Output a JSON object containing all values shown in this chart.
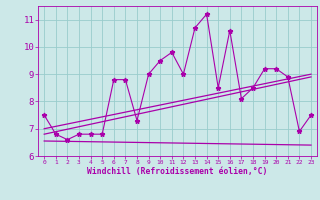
{
  "title": "",
  "xlabel": "Windchill (Refroidissement éolien,°C)",
  "ylabel": "",
  "xlim": [
    -0.5,
    23.5
  ],
  "ylim": [
    6.0,
    11.5
  ],
  "yticks": [
    6,
    7,
    8,
    9,
    10,
    11
  ],
  "xticks": [
    0,
    1,
    2,
    3,
    4,
    5,
    6,
    7,
    8,
    9,
    10,
    11,
    12,
    13,
    14,
    15,
    16,
    17,
    18,
    19,
    20,
    21,
    22,
    23
  ],
  "bg_color": "#cce8e8",
  "line_color": "#aa00aa",
  "grid_color": "#99cccc",
  "series": {
    "jagged": {
      "x": [
        0,
        1,
        2,
        3,
        4,
        5,
        6,
        7,
        8,
        9,
        10,
        11,
        12,
        13,
        14,
        15,
        16,
        17,
        18,
        19,
        20,
        21,
        22,
        23
      ],
      "y": [
        7.5,
        6.8,
        6.6,
        6.8,
        6.8,
        6.8,
        8.8,
        8.8,
        7.3,
        9.0,
        9.5,
        9.8,
        9.0,
        10.7,
        11.2,
        8.5,
        10.6,
        8.1,
        8.5,
        9.2,
        9.2,
        8.9,
        6.9,
        7.5
      ]
    },
    "trend1": {
      "x": [
        0,
        23
      ],
      "y": [
        7.0,
        9.0
      ]
    },
    "trend2": {
      "x": [
        0,
        23
      ],
      "y": [
        6.8,
        8.9
      ]
    },
    "flat": {
      "x": [
        0,
        23
      ],
      "y": [
        6.55,
        6.4
      ]
    }
  }
}
